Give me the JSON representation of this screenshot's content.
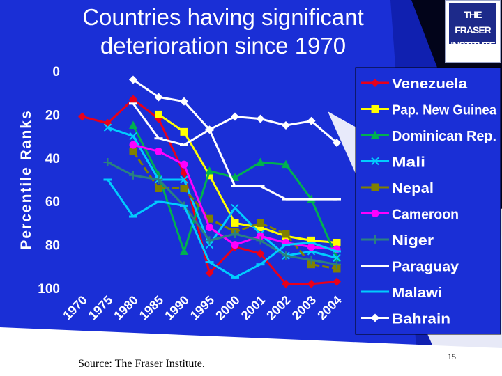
{
  "slide": {
    "title_line1": "Countries having significant",
    "title_line2": "deterioration since 1970",
    "logo_line1": "THE FRASER",
    "logo_line2": "INSTITUTE",
    "source": "Source: The Fraser Institute.",
    "page_number": "15"
  },
  "colors": {
    "background": "#1a2fd6",
    "chart_area": "#ffffff",
    "Venezuela": "#e8001a",
    "Pap. New Guinea": "#ffff00",
    "Dominican Rep.": "#00b050",
    "Mali": "#00ccff",
    "Nepal": "#808000",
    "Cameroon": "#ff00ff",
    "Niger": "#2a8080",
    "Paraguay": "#ffffff",
    "Malawi": "#00ccff",
    "Bahrain": "#ffffff"
  },
  "chart_data": {
    "type": "line",
    "ylabel": "Percentile Ranks",
    "xlabel": "",
    "x": [
      "1970",
      "1975",
      "1980",
      "1985",
      "1990",
      "1995",
      "2000",
      "2001",
      "2002",
      "2003",
      "2004"
    ],
    "yticks": [
      "0",
      "20",
      "40",
      "60",
      "80",
      "100"
    ],
    "ylim": [
      0,
      100
    ],
    "y_inverted": true,
    "grid": false,
    "legend_position": "right",
    "series": [
      {
        "name": "Venezuela",
        "marker": "diamond",
        "values": [
          21,
          24,
          13,
          22,
          47,
          93,
          81,
          84,
          98,
          98,
          97
        ]
      },
      {
        "name": "Pap. New Guinea",
        "marker": "square",
        "values": [
          null,
          null,
          null,
          20,
          28,
          48,
          70,
          72,
          76,
          78,
          79
        ]
      },
      {
        "name": "Dominican Rep.",
        "marker": "triangle",
        "values": [
          null,
          null,
          25,
          48,
          83,
          46,
          49,
          42,
          43,
          59,
          86
        ]
      },
      {
        "name": "Mali",
        "marker": "x",
        "values": [
          null,
          26,
          30,
          50,
          50,
          80,
          63,
          75,
          85,
          83,
          86
        ]
      },
      {
        "name": "Nepal",
        "marker": "square",
        "values": [
          null,
          null,
          37,
          54,
          54,
          68,
          74,
          70,
          75,
          89,
          91
        ]
      },
      {
        "name": "Cameroon",
        "marker": "circle",
        "values": [
          null,
          null,
          34,
          37,
          43,
          72,
          80,
          76,
          79,
          81,
          82
        ]
      },
      {
        "name": "Niger",
        "marker": "plus",
        "values": [
          null,
          42,
          48,
          50,
          62,
          78,
          75,
          78,
          85,
          87,
          89
        ]
      },
      {
        "name": "Paraguay",
        "marker": "dash",
        "values": [
          null,
          null,
          15,
          31,
          34,
          27,
          53,
          53,
          59,
          59,
          59
        ]
      },
      {
        "name": "Malawi",
        "marker": "dash",
        "values": [
          null,
          50,
          67,
          60,
          62,
          88,
          95,
          89,
          80,
          79,
          83
        ]
      },
      {
        "name": "Bahrain",
        "marker": "diamond",
        "values": [
          null,
          null,
          4,
          12,
          14,
          27,
          21,
          22,
          25,
          23,
          33
        ]
      }
    ]
  }
}
